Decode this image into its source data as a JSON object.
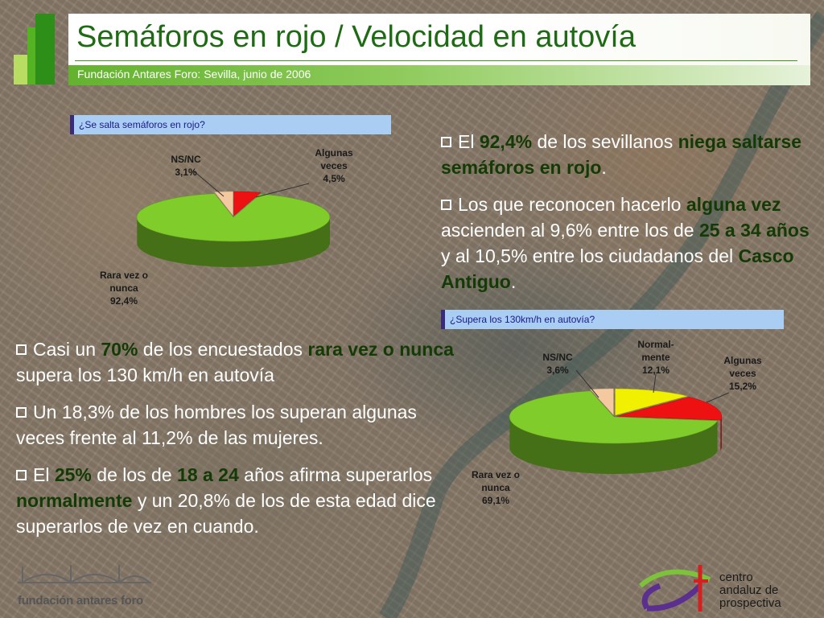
{
  "header": {
    "title": "Semáforos en rojo / Velocidad en autovía",
    "subtitle": "Fundación Antares Foro: Sevilla, junio de 2006"
  },
  "charts_text": {
    "q1": "¿Se salta semáforos en rojo?",
    "q2": "¿Supera los 130km/h en autovía?"
  },
  "chart_data": [
    {
      "type": "pie",
      "title": "¿Se salta semáforos en rojo?",
      "slices": [
        {
          "label": "Algunas veces",
          "value": 4.5,
          "display": "4,5%",
          "color": "#ee1111"
        },
        {
          "label": "Rara vez o nunca",
          "value": 92.4,
          "display": "92,4%",
          "color": "#7fcc2a"
        },
        {
          "label": "NS/NC",
          "value": 3.1,
          "display": "3,1%",
          "color": "#f5c9a0"
        }
      ]
    },
    {
      "type": "pie",
      "title": "¿Supera los 130km/h en autovía?",
      "slices": [
        {
          "label": "Normal- mente",
          "value": 12.1,
          "display": "12,1%",
          "color": "#f0f000"
        },
        {
          "label": "Algunas veces",
          "value": 15.2,
          "display": "15,2%",
          "color": "#ee1111"
        },
        {
          "label": "Rara vez o nunca",
          "value": 69.1,
          "display": "69,1%",
          "color": "#7fcc2a"
        },
        {
          "label": "NS/NC",
          "value": 3.6,
          "display": "3,6%",
          "color": "#f5c9a0"
        }
      ]
    }
  ],
  "text_right": {
    "p1": [
      "El ",
      "92,4%",
      " de los sevillanos ",
      "niega saltarse semáforos en rojo",
      "."
    ],
    "p2": [
      "Los que reconocen hacerlo ",
      "alguna vez",
      " ascienden al 9,6% entre los de ",
      "25 a 34 años",
      " y al 10,5% entre los ciudadanos del ",
      "Casco Antiguo",
      "."
    ]
  },
  "text_left": {
    "p1": [
      "Casi un ",
      "70%",
      " de los encuestados ",
      "rara vez o nunca",
      " supera los 130 km/h en autovía"
    ],
    "p2": [
      "Un 18,3% de los hombres los superan algunas veces frente al 11,2% de las mujeres."
    ],
    "p3": [
      "El ",
      "25%",
      " de los de ",
      "18 a 24",
      " años afirma superarlos ",
      "normalmente",
      " y un 20,8% de los de esta edad dice superarlos de vez en cuando."
    ]
  },
  "footer": {
    "left_name": "fundación antares foro",
    "right_lines": [
      "centro",
      "andaluz de",
      "prospectiva"
    ]
  },
  "colors": {
    "brand_green": "#1f6a14",
    "bold_text": "#143a06",
    "label_bg": "#a9cdf3"
  }
}
